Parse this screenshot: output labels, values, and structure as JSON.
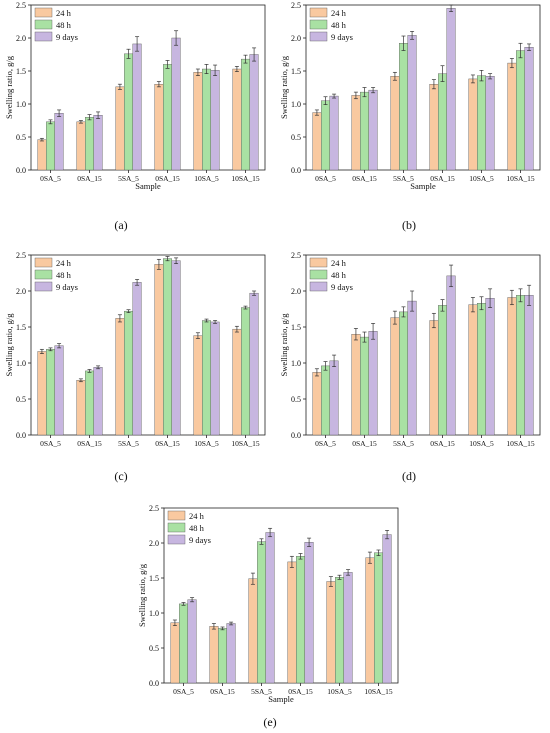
{
  "colors": {
    "24h": "#F9C9A0",
    "48h": "#A9E1A3",
    "9d": "#C7B6E0",
    "axis": "#222222",
    "error": "#333333"
  },
  "panels": [
    {
      "caption": "(a)"
    },
    {
      "caption": "(b)"
    },
    {
      "caption": "(c)"
    },
    {
      "caption": "(d)"
    },
    {
      "caption": "(e)"
    }
  ],
  "chart_data": [
    {
      "type": "bar",
      "xlabel": "Sample",
      "ylabel": "Swelling ratio, g/g",
      "ylim": [
        0,
        2.5
      ],
      "yticks": [
        "0.0",
        "0.5",
        "1.0",
        "1.5",
        "2.0",
        "2.5"
      ],
      "legend_position": "top-left",
      "categories": [
        "0SA_5",
        "0SA_15",
        "5SA_5",
        "0SA_15",
        "10SA_5",
        "10SA_15"
      ],
      "series": [
        {
          "name": "24 h",
          "values": [
            0.46,
            0.73,
            1.26,
            1.3,
            1.48,
            1.53
          ],
          "errors": [
            0.02,
            0.02,
            0.04,
            0.04,
            0.05,
            0.04
          ]
        },
        {
          "name": "48 h",
          "values": [
            0.73,
            0.8,
            1.76,
            1.6,
            1.53,
            1.68
          ],
          "errors": [
            0.03,
            0.04,
            0.07,
            0.06,
            0.07,
            0.06
          ]
        },
        {
          "name": "9 days",
          "values": [
            0.86,
            0.83,
            1.91,
            2.0,
            1.51,
            1.75
          ],
          "errors": [
            0.05,
            0.05,
            0.11,
            0.11,
            0.08,
            0.1
          ]
        }
      ]
    },
    {
      "type": "bar",
      "xlabel": "Sample",
      "ylabel": "Swelling ratio, g/g",
      "ylim": [
        0,
        2.5
      ],
      "yticks": [
        "0.0",
        "0.5",
        "1.0",
        "1.5",
        "2.0",
        "2.5"
      ],
      "legend_position": "top-left",
      "categories": [
        "0SA_5",
        "0SA_15",
        "5SA_5",
        "0SA_15",
        "10SA_5",
        "10SA_15"
      ],
      "series": [
        {
          "name": "24 h",
          "values": [
            0.87,
            1.13,
            1.42,
            1.3,
            1.38,
            1.62
          ],
          "errors": [
            0.04,
            0.05,
            0.06,
            0.07,
            0.06,
            0.07
          ]
        },
        {
          "name": "48 h",
          "values": [
            1.05,
            1.18,
            1.92,
            1.46,
            1.43,
            1.81
          ],
          "errors": [
            0.06,
            0.07,
            0.11,
            0.12,
            0.08,
            0.11
          ]
        },
        {
          "name": "9 days",
          "values": [
            1.12,
            1.21,
            2.04,
            2.45,
            1.42,
            1.86
          ],
          "errors": [
            0.03,
            0.04,
            0.06,
            0.05,
            0.04,
            0.05
          ]
        }
      ]
    },
    {
      "type": "bar",
      "xlabel": "",
      "ylabel": "Swelling ratio, g/g",
      "ylim": [
        0,
        2.5
      ],
      "yticks": [
        "0.0",
        "0.5",
        "1.0",
        "1.5",
        "2.0",
        "2.5"
      ],
      "legend_position": "top-left",
      "categories": [
        "0SA_5",
        "0SA_15",
        "5SA_5",
        "0SA_15",
        "10SA_5",
        "10SA_15"
      ],
      "series": [
        {
          "name": "24 h",
          "values": [
            1.16,
            0.76,
            1.62,
            2.37,
            1.38,
            1.47
          ],
          "errors": [
            0.03,
            0.02,
            0.05,
            0.07,
            0.04,
            0.04
          ]
        },
        {
          "name": "48 h",
          "values": [
            1.19,
            0.89,
            1.72,
            2.45,
            1.59,
            1.77
          ],
          "errors": [
            0.02,
            0.02,
            0.02,
            0.03,
            0.02,
            0.02
          ]
        },
        {
          "name": "9 days",
          "values": [
            1.24,
            0.94,
            2.12,
            2.42,
            1.57,
            1.97
          ],
          "errors": [
            0.03,
            0.02,
            0.04,
            0.04,
            0.02,
            0.03
          ]
        }
      ]
    },
    {
      "type": "bar",
      "xlabel": "",
      "ylabel": "Swelling ratio, g/g",
      "ylim": [
        0,
        2.5
      ],
      "yticks": [
        "0.0",
        "0.5",
        "1.0",
        "1.5",
        "2.0",
        "2.5"
      ],
      "legend_position": "top-left",
      "categories": [
        "0SA_5",
        "0SA_15",
        "5SA_5",
        "0SA_15",
        "10SA_5",
        "10SA_15"
      ],
      "series": [
        {
          "name": "24 h",
          "values": [
            0.87,
            1.4,
            1.63,
            1.59,
            1.81,
            1.91
          ],
          "errors": [
            0.05,
            0.08,
            0.09,
            0.1,
            0.1,
            0.1
          ]
        },
        {
          "name": "48 h",
          "values": [
            0.96,
            1.36,
            1.71,
            1.8,
            1.83,
            1.94
          ],
          "errors": [
            0.06,
            0.07,
            0.07,
            0.08,
            0.09,
            0.09
          ]
        },
        {
          "name": "9 days",
          "values": [
            1.03,
            1.44,
            1.86,
            2.21,
            1.9,
            1.94
          ],
          "errors": [
            0.08,
            0.11,
            0.14,
            0.15,
            0.13,
            0.14
          ]
        }
      ]
    },
    {
      "type": "bar",
      "xlabel": "Sample",
      "ylabel": "Swelling ratio, g/g",
      "ylim": [
        0,
        2.5
      ],
      "yticks": [
        "0.0",
        "0.5",
        "1.0",
        "1.5",
        "2.0",
        "2.5"
      ],
      "legend_position": "top-left",
      "categories": [
        "0SA_5",
        "0SA_15",
        "5SA_5",
        "0SA_15",
        "10SA_5",
        "10SA_15"
      ],
      "series": [
        {
          "name": "24 h",
          "values": [
            0.86,
            0.81,
            1.49,
            1.73,
            1.45,
            1.79
          ],
          "errors": [
            0.04,
            0.04,
            0.08,
            0.08,
            0.07,
            0.08
          ]
        },
        {
          "name": "48 h",
          "values": [
            1.13,
            0.78,
            2.02,
            1.81,
            1.51,
            1.86
          ],
          "errors": [
            0.02,
            0.02,
            0.04,
            0.04,
            0.03,
            0.04
          ]
        },
        {
          "name": "9 days",
          "values": [
            1.19,
            0.85,
            2.15,
            2.01,
            1.58,
            2.12
          ],
          "errors": [
            0.03,
            0.02,
            0.06,
            0.06,
            0.04,
            0.06
          ]
        }
      ]
    }
  ]
}
